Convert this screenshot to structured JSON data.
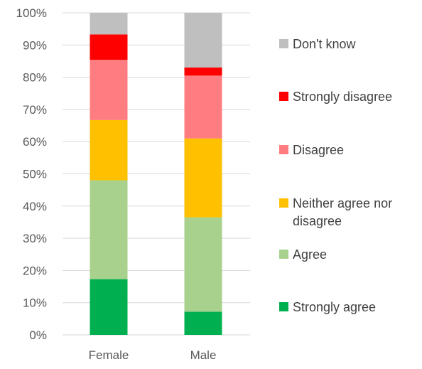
{
  "chart_data": {
    "type": "stacked-bar-100",
    "categories": [
      "Female",
      "Male"
    ],
    "ylim": [
      0,
      100
    ],
    "y_ticks": [
      "0%",
      "10%",
      "20%",
      "30%",
      "40%",
      "50%",
      "60%",
      "70%",
      "80%",
      "90%",
      "100%"
    ],
    "grid": true,
    "legend_position": "right",
    "series": [
      {
        "name": "Strongly agree",
        "color": "#00b050",
        "values": [
          17.3,
          7.2
        ]
      },
      {
        "name": "Agree",
        "color": "#a9d18e",
        "values": [
          30.7,
          29.3
        ]
      },
      {
        "name": "Neither agree nor disagree",
        "color": "#ffc000",
        "values": [
          18.7,
          24.5
        ]
      },
      {
        "name": "Disagree",
        "color": "#ff7c80",
        "values": [
          18.7,
          19.5
        ]
      },
      {
        "name": "Strongly disagree",
        "color": "#ff0000",
        "values": [
          7.9,
          2.5
        ]
      },
      {
        "name": "Don't know",
        "color": "#bfbfbf",
        "values": [
          6.7,
          17.0
        ]
      }
    ]
  }
}
